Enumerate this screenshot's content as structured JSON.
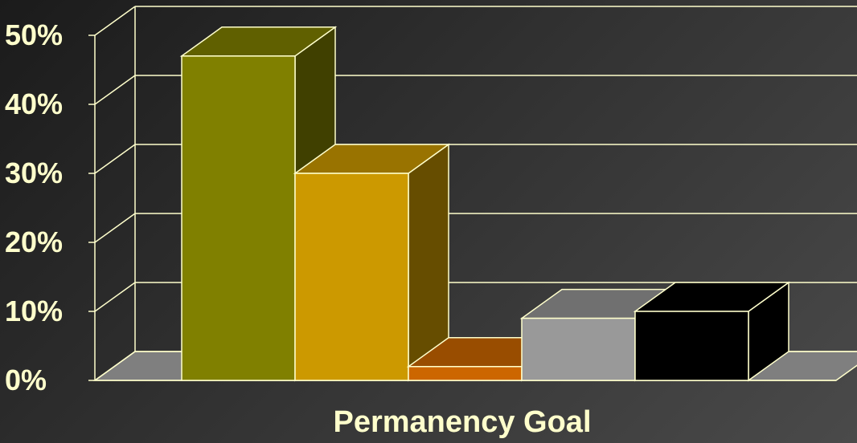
{
  "chart_data": {
    "type": "bar",
    "title": "",
    "xlabel": "Permanency Goal",
    "ylabel": "",
    "ylim": [
      0,
      50
    ],
    "yticks": [
      0,
      10,
      20,
      30,
      40,
      50
    ],
    "ytick_labels": [
      "0%",
      "10%",
      "20%",
      "30%",
      "40%",
      "50%"
    ],
    "grid": true,
    "legend": "none",
    "three_d": true,
    "categories": [
      "",
      "",
      "",
      "",
      ""
    ],
    "values": [
      47,
      30,
      2,
      9,
      10
    ],
    "bar_colors": [
      "#808000",
      "#CC9900",
      "#CC6600",
      "#999999",
      "#000000"
    ]
  },
  "theme": {
    "text_color": "#FFFFCC",
    "grid_color": "#FFFFCC",
    "floor_color": "#7F7F7F",
    "bar_edge_color": "#FFFFCC"
  }
}
